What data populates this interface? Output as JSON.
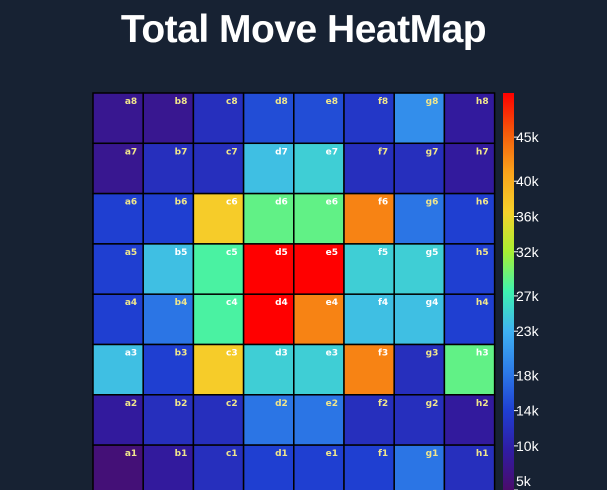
{
  "chart_data": {
    "type": "heatmap",
    "title": "Total Move HeatMap",
    "files": [
      "a",
      "b",
      "c",
      "d",
      "e",
      "f",
      "g",
      "h"
    ],
    "ranks": [
      8,
      7,
      6,
      5,
      4,
      3,
      2,
      1
    ],
    "values": [
      [
        8000,
        8000,
        12000,
        15000,
        15000,
        13000,
        20000,
        9000
      ],
      [
        8000,
        12000,
        12000,
        24000,
        25000,
        12000,
        12000,
        9000
      ],
      [
        14000,
        14000,
        37000,
        29000,
        29000,
        43000,
        18000,
        14000
      ],
      [
        14000,
        24000,
        28000,
        50000,
        50000,
        25000,
        25000,
        14000
      ],
      [
        14000,
        18000,
        28000,
        50000,
        43000,
        24000,
        24000,
        14000
      ],
      [
        24000,
        14000,
        37000,
        25000,
        25000,
        43000,
        12000,
        29000
      ],
      [
        9000,
        12000,
        12000,
        18000,
        18000,
        12000,
        12000,
        9000
      ],
      [
        6000,
        9000,
        12000,
        14000,
        14000,
        14000,
        18000,
        12000
      ]
    ],
    "colorscale": {
      "min": 5000,
      "max": 50000,
      "colors": [
        "#4a0c6b",
        "#2f1ca3",
        "#1f3fd1",
        "#2d7ce8",
        "#3fb1f2",
        "#3ef2b0",
        "#a7f032",
        "#f6d12b",
        "#faa31b",
        "#f45a0b",
        "#ff0000"
      ],
      "tick_values": [
        5000,
        10000,
        14000,
        18000,
        23000,
        27000,
        32000,
        36000,
        40000,
        45000
      ],
      "tick_labels": [
        "5k",
        "10k",
        "14k",
        "18k",
        "23k",
        "27k",
        "32k",
        "36k",
        "40k",
        "45k"
      ]
    },
    "label_colors": {
      "dark": "#f0e68c",
      "light": "#ffffff"
    }
  }
}
